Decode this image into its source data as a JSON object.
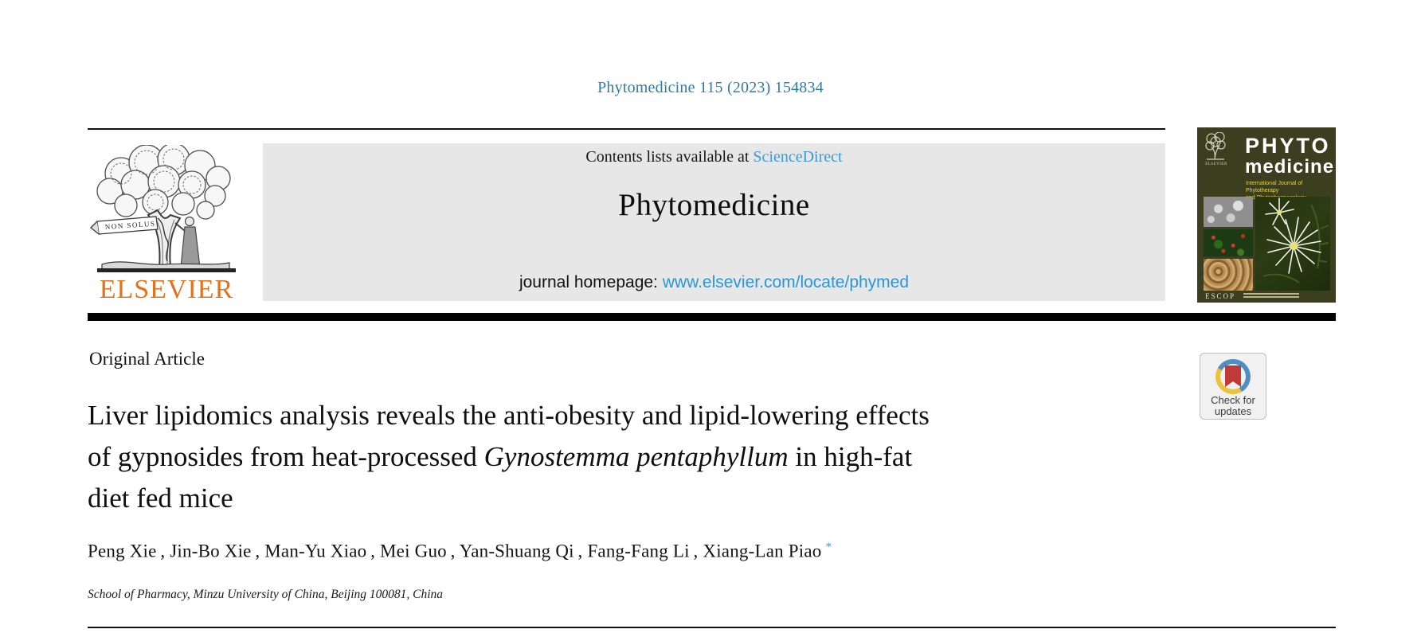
{
  "page": {
    "citation": "Phytomedicine 115 (2023) 154834"
  },
  "masthead": {
    "contents_line_prefix": "Contents lists available at ",
    "sciencedirect_link": "ScienceDirect",
    "journal_name": "Phytomedicine",
    "homepage_label": "journal homepage: ",
    "homepage_url": "www.elsevier.com/locate/phymed"
  },
  "publisher": {
    "wordmark": "ELSEVIER",
    "banner_motto": "NON SOLUS"
  },
  "cover": {
    "brand_line1": "PHYTO",
    "brand_line2": "medicine",
    "subtitle_line1": "International Journal of Phytotherapy",
    "subtitle_line2": "and Phytopharmacology",
    "mini_wordmark": "ELSEVIER",
    "footer_text": "ESCOP"
  },
  "article": {
    "type_label": "Original Article",
    "title_line1": "Liver lipidomics analysis reveals the anti-obesity and lipid-lowering effects",
    "title_line2_pre": "of gypnosides from heat-processed ",
    "title_line2_italic": "Gynostemma pentaphyllum",
    "title_line2_post": " in high-fat",
    "title_line3": "diet fed mice",
    "authors": [
      "Peng Xie",
      "Jin-Bo Xie",
      "Man-Yu Xiao",
      "Mei Guo",
      "Yan-Shuang Qi",
      "Fang-Fang Li",
      "Xiang-Lan Piao"
    ],
    "author_separator": " , ",
    "corresponding_marker": "*",
    "affiliation": "School of Pharmacy, Minzu University of China, Beijing 100081, China"
  },
  "badge": {
    "line1": "Check for",
    "line2": "updates"
  },
  "colors": {
    "citation_teal": "#2e7ca6",
    "sciencedirect_blue": "#3d9bd3",
    "homepage_link_blue": "#2b96d2",
    "elsevier_orange": "#e0731c",
    "masthead_band_gray": "#e7e7e7",
    "cover_olive": "#3b3f1f",
    "cover_subtitle_yellow": "#e4d24f",
    "badge_ring_blue": "#4e8ec2",
    "badge_ring_yellow": "#ecc23a",
    "badge_bookmark_red": "#c03a3a"
  }
}
